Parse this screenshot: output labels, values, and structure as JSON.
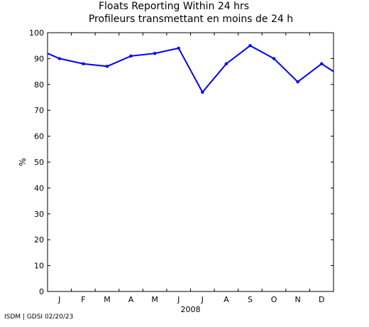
{
  "chart_data": {
    "type": "line",
    "title": "Floats Reporting Within 24 hrs",
    "subtitle": "Profileurs transmettant en moins de 24 h",
    "xlabel": "2008",
    "ylabel": "%",
    "ylim": [
      0,
      100
    ],
    "yticks": [
      0,
      10,
      20,
      30,
      40,
      50,
      60,
      70,
      80,
      90,
      100
    ],
    "x_tick_labels": [
      "J",
      "F",
      "M",
      "A",
      "M",
      "J",
      "J",
      "A",
      "S",
      "O",
      "N",
      "D"
    ],
    "grid": false,
    "line_color": "#0000ff",
    "series": [
      {
        "x": [
          0.5,
          1,
          2,
          3,
          4,
          5,
          6,
          7,
          8,
          9,
          10,
          11,
          12,
          12.5
        ],
        "values": [
          92,
          90,
          88,
          87,
          91,
          92,
          94,
          77,
          88,
          95,
          90,
          81,
          88,
          85
        ]
      }
    ]
  },
  "footer": "ISDM | GDSI 02/20/23"
}
